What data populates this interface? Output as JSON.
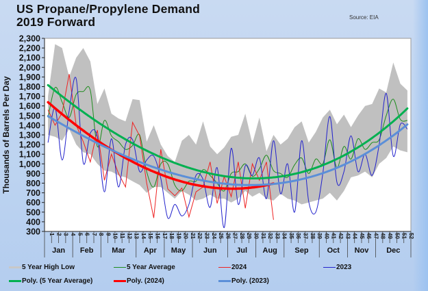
{
  "chart_data": {
    "type": "line",
    "title": "US Propane/Propylene Demand",
    "subtitle": "2019 Forward",
    "source": "Source: EIA",
    "ylabel": "Thousands of Barrels Per Day",
    "xlabel": "",
    "ylim": [
      300,
      2300
    ],
    "ytick_step": 100,
    "yticks": [
      "2,300",
      "2,200",
      "2,100",
      "2,000",
      "1,900",
      "1,800",
      "1,700",
      "1,600",
      "1,500",
      "1,400",
      "1,300",
      "1,200",
      "1,100",
      "1,000",
      "900",
      "800",
      "700",
      "600",
      "500",
      "400",
      "300"
    ],
    "x": [
      1,
      2,
      3,
      4,
      5,
      6,
      7,
      8,
      9,
      10,
      11,
      12,
      13,
      14,
      15,
      16,
      17,
      18,
      19,
      20,
      21,
      22,
      23,
      24,
      25,
      26,
      27,
      28,
      29,
      30,
      31,
      32,
      33,
      34,
      35,
      36,
      37,
      38,
      39,
      40,
      41,
      42,
      43,
      44,
      45,
      46,
      47,
      48,
      49,
      50,
      51,
      52
    ],
    "months": [
      {
        "label": "Jan",
        "start": 1,
        "end": 4
      },
      {
        "label": "Feb",
        "start": 5,
        "end": 8
      },
      {
        "label": "Mar",
        "start": 9,
        "end": 13
      },
      {
        "label": "Apr",
        "start": 14,
        "end": 17
      },
      {
        "label": "May",
        "start": 18,
        "end": 21
      },
      {
        "label": "Jun",
        "start": 22,
        "end": 26
      },
      {
        "label": "Jul",
        "start": 27,
        "end": 30
      },
      {
        "label": "Aug",
        "start": 31,
        "end": 34
      },
      {
        "label": "Sep",
        "start": 35,
        "end": 39
      },
      {
        "label": "Oct",
        "start": 40,
        "end": 43
      },
      {
        "label": "Nov",
        "start": 44,
        "end": 47
      },
      {
        "label": "Dec",
        "start": 48,
        "end": 52
      }
    ],
    "grid": false,
    "legend_position": "bottom",
    "series": [
      {
        "name": "5 Year High Low",
        "kind": "band",
        "color": "#c0c0c0",
        "high": [
          1700,
          2240,
          2200,
          1900,
          2100,
          2200,
          2060,
          1620,
          1780,
          1520,
          1470,
          1440,
          1670,
          1660,
          1230,
          1400,
          1200,
          1080,
          1020,
          1240,
          1300,
          1200,
          1440,
          1180,
          1100,
          1170,
          1280,
          1300,
          1520,
          1210,
          1480,
          1130,
          1300,
          1200,
          1260,
          1380,
          1440,
          1220,
          1330,
          1480,
          1560,
          1410,
          1510,
          1380,
          1500,
          1600,
          1620,
          1780,
          1740,
          2050,
          1830,
          1760
        ],
        "low": [
          1300,
          1280,
          1240,
          1360,
          1200,
          1120,
          1100,
          1000,
          930,
          920,
          880,
          860,
          820,
          780,
          700,
          760,
          760,
          700,
          640,
          720,
          680,
          620,
          640,
          680,
          640,
          640,
          600,
          640,
          720,
          660,
          700,
          640,
          620,
          690,
          640,
          620,
          580,
          600,
          620,
          640,
          700,
          620,
          720,
          860,
          880,
          920,
          860,
          1000,
          1060,
          1180,
          1140,
          1120
        ]
      },
      {
        "name": "5 Year Average",
        "kind": "line",
        "color": "#1e8c1e",
        "width": 1,
        "values": [
          1480,
          1790,
          1640,
          1480,
          1720,
          1750,
          1760,
          1180,
          1450,
          1290,
          1230,
          1150,
          1190,
          1300,
          920,
          760,
          1000,
          1000,
          780,
          720,
          820,
          820,
          940,
          880,
          800,
          720,
          900,
          920,
          1000,
          870,
          950,
          1090,
          930,
          900,
          860,
          990,
          1060,
          900,
          1050,
          1000,
          1250,
          960,
          1180,
          1050,
          1260,
          1150,
          1220,
          1250,
          1500,
          1670,
          1460,
          1450
        ]
      },
      {
        "name": "2024",
        "kind": "line",
        "color": "#ee2222",
        "width": 1,
        "values": [
          1560,
          1400,
          1530,
          1930,
          1400,
          1230,
          1020,
          1350,
          830,
          1100,
          900,
          760,
          1430,
          1290,
          800,
          440,
          1150,
          740,
          670,
          750,
          450,
          710,
          760,
          1020,
          590,
          870,
          660,
          1020,
          540,
          1000,
          830,
          1020,
          420
        ]
      },
      {
        "name": "2023",
        "kind": "line",
        "color": "#2222cc",
        "width": 1,
        "values": [
          1220,
          1580,
          1040,
          1550,
          1880,
          1010,
          1320,
          1280,
          710,
          1260,
          760,
          1200,
          1250,
          920,
          1040,
          1080,
          850,
          440,
          580,
          460,
          580,
          880,
          840,
          550,
          960,
          340,
          1160,
          580,
          980,
          880,
          1060,
          640,
          1240,
          690,
          1000,
          500,
          1240,
          610,
          500,
          900,
          1490,
          810,
          920,
          1290,
          920,
          1100,
          880,
          1200,
          1730,
          1080,
          1410,
          1360
        ]
      },
      {
        "name": "Poly. (5 Year Average)",
        "kind": "poly",
        "color": "#00b050",
        "width": 3,
        "x_range": [
          1,
          52
        ],
        "values_at": {
          "1": 1820,
          "10": 1330,
          "20": 990,
          "27": 850,
          "33": 880,
          "40": 1000,
          "46": 1180,
          "52": 1590
        }
      },
      {
        "name": "Poly. (2024)",
        "kind": "poly",
        "color": "#ff0000",
        "width": 3.5,
        "x_range": [
          1,
          33
        ],
        "values_at": {
          "1": 1640,
          "10": 1140,
          "20": 830,
          "27": 730,
          "33": 800
        }
      },
      {
        "name": "Poly. (2023)",
        "kind": "poly",
        "color": "#5b8fd8",
        "width": 3,
        "x_range": [
          1,
          52
        ],
        "values_at": {
          "1": 1490,
          "10": 1160,
          "20": 860,
          "27": 770,
          "33": 820,
          "40": 920,
          "46": 1070,
          "52": 1420
        }
      }
    ]
  },
  "legend": {
    "items": [
      {
        "label": "5 Year High Low",
        "color": "#c8c8c8",
        "thick": true
      },
      {
        "label": "5 Year Average",
        "color": "#1e8c1e",
        "thick": false
      },
      {
        "label": "2024",
        "color": "#ee2222",
        "thick": false
      },
      {
        "label": "2023",
        "color": "#2222cc",
        "thick": false
      },
      {
        "label": "Poly. (5 Year Average)",
        "color": "#00b050",
        "thick": true
      },
      {
        "label": "Poly. (2024)",
        "color": "#ff0000",
        "thick": true
      },
      {
        "label": "Poly. (2023)",
        "color": "#5b8fd8",
        "thick": true
      }
    ]
  }
}
